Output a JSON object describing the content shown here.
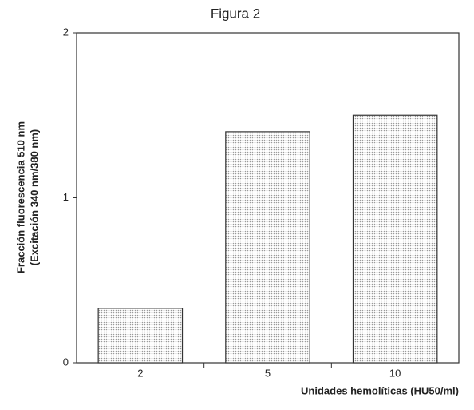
{
  "chart_data": {
    "type": "bar",
    "title": "Figura 2",
    "y_label": [
      "Fracción fluorescencia 510 nm",
      "(Excitación 340 nm/380 nm)"
    ],
    "x_label": "Unidades hemolíticas (HU50/ml)",
    "categories": [
      "2",
      "5",
      "10"
    ],
    "values": [
      0.33,
      1.4,
      1.5
    ],
    "color": "#9a9a9a",
    "ylim": [
      0,
      2
    ],
    "yticks": [
      0,
      1,
      2
    ]
  }
}
